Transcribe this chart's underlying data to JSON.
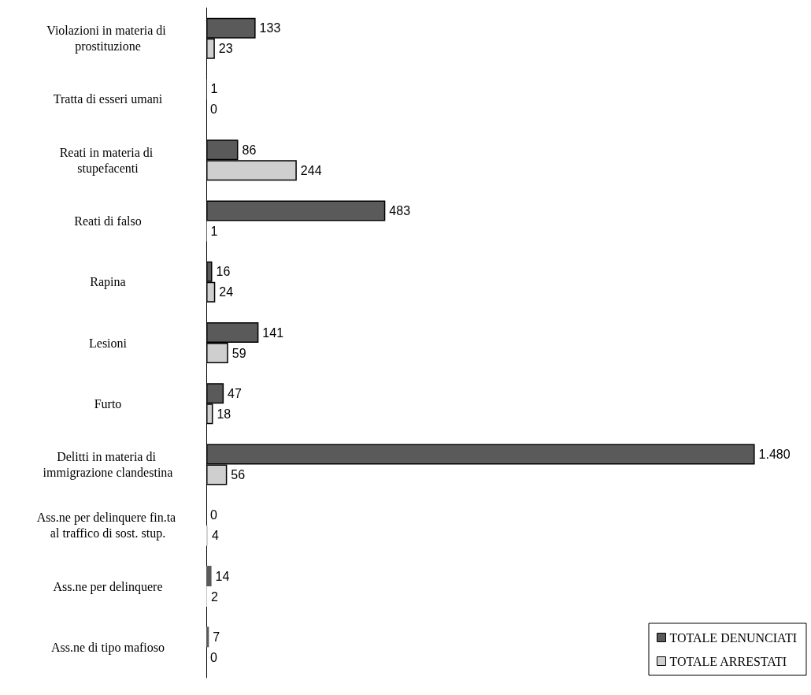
{
  "chart_data": {
    "type": "bar",
    "orientation": "horizontal",
    "categories": [
      "Violazioni in materia di prostituzione",
      "Tratta di esseri umani",
      "Reati in materia di stupefacenti",
      "Reati di falso",
      "Rapina",
      "Lesioni",
      "Furto",
      "Delitti in materia di immigrazione clandestina",
      "Ass.ne per delinquere fin.ta al traffico di sost. stup.",
      "Ass.ne per delinquere",
      "Ass.ne di tipo mafioso"
    ],
    "series": [
      {
        "name": "TOTALE DENUNCIATI",
        "color": "#5a5a5a",
        "values": [
          133,
          1,
          86,
          483,
          16,
          141,
          47,
          1480,
          0,
          14,
          7
        ],
        "value_labels": [
          "133",
          "1",
          "86",
          "483",
          "16",
          "141",
          "47",
          "1.480",
          "0",
          "14",
          "7"
        ]
      },
      {
        "name": "TOTALE ARRESTATI",
        "color": "#cfcfcf",
        "values": [
          23,
          0,
          244,
          1,
          24,
          59,
          18,
          56,
          4,
          2,
          0
        ],
        "value_labels": [
          "23",
          "0",
          "244",
          "1",
          "24",
          "59",
          "18",
          "56",
          "4",
          "2",
          "0"
        ]
      }
    ],
    "legend": "bottom right",
    "grid": false
  }
}
